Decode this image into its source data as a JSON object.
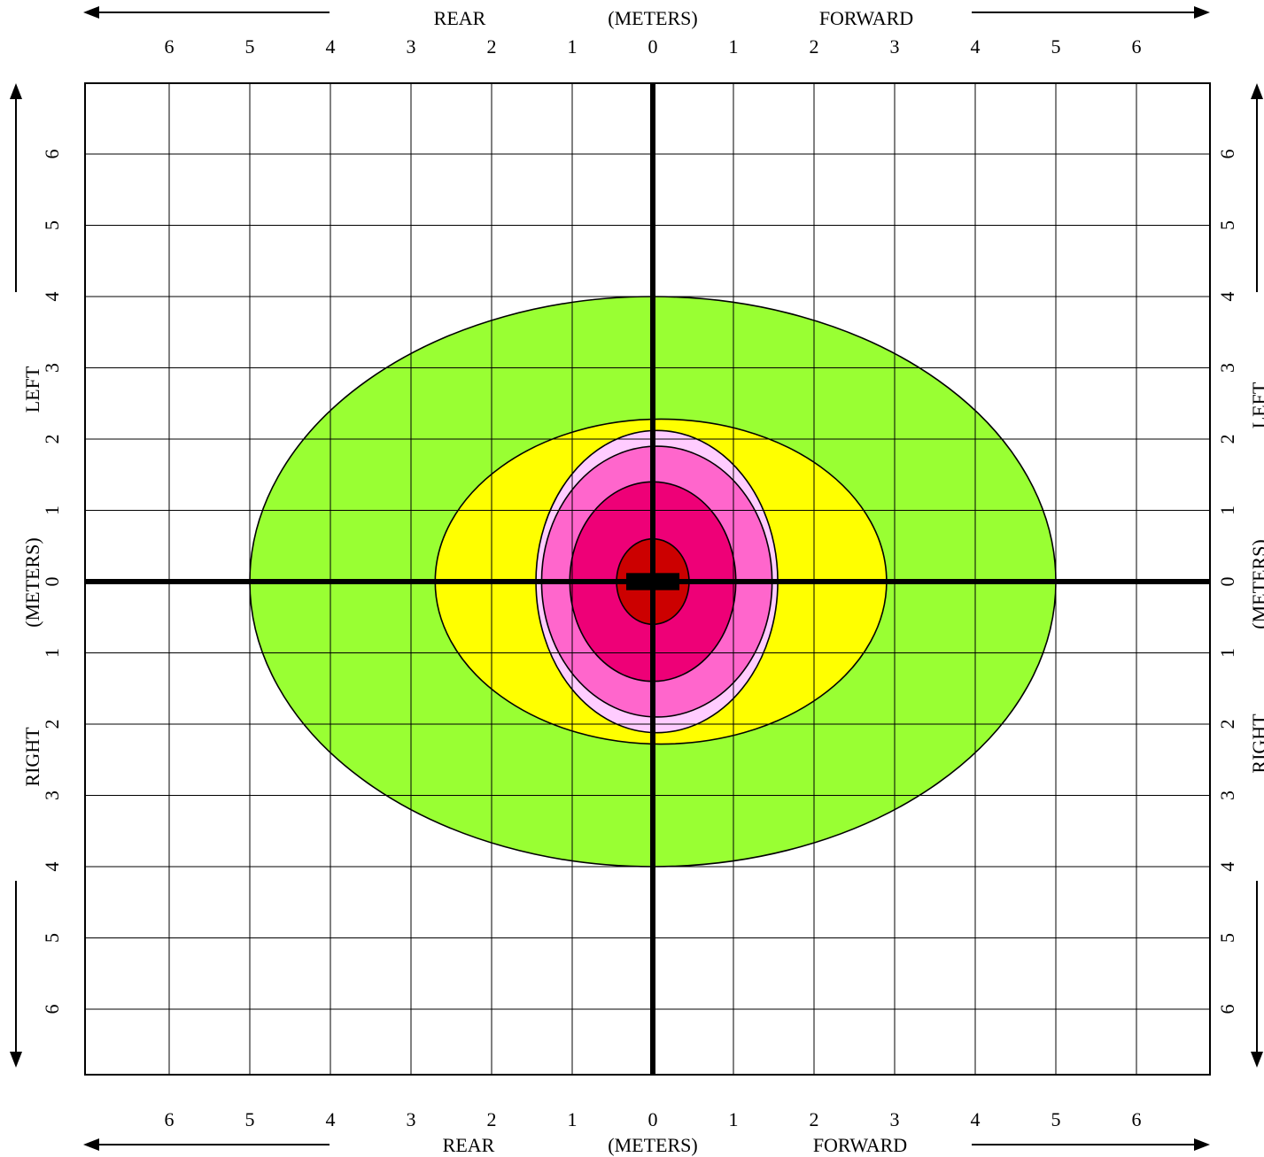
{
  "header": {
    "left_word": "REAR",
    "units": "(METERS)",
    "right_word": "FORWARD"
  },
  "footer": {
    "left_word": "REAR",
    "units": "(METERS)",
    "right_word": "FORWARD"
  },
  "left_side": {
    "top_word": "LEFT",
    "units": "(METERS)",
    "bottom_word": "RIGHT"
  },
  "right_side": {
    "top_word": "LEFT",
    "units": "(METERS)",
    "bottom_word": "RIGHT"
  },
  "chart_data": {
    "type": "heatmap",
    "x_range": [
      -7,
      7
    ],
    "y_range": [
      -7,
      7
    ],
    "x_tick_labels": [
      "6",
      "5",
      "4",
      "3",
      "2",
      "1",
      "0",
      "1",
      "2",
      "3",
      "4",
      "5",
      "6"
    ],
    "x_tick_values": [
      -6,
      -5,
      -4,
      -3,
      -2,
      -1,
      0,
      1,
      2,
      3,
      4,
      5,
      6
    ],
    "y_tick_labels": [
      "6",
      "5",
      "4",
      "3",
      "2",
      "1",
      "0",
      "1",
      "2",
      "3",
      "4",
      "5",
      "6"
    ],
    "y_tick_values": [
      6,
      5,
      4,
      3,
      2,
      1,
      0,
      -1,
      -2,
      -3,
      -4,
      -5,
      -6
    ],
    "grid": true,
    "zones": [
      {
        "color": "#99FF33",
        "cx": 0,
        "cy": 0,
        "rx": 5.0,
        "ry": 4.0
      },
      {
        "color": "#FFFF00",
        "cx": 0.1,
        "cy": 0,
        "rx": 2.8,
        "ry": 2.28
      },
      {
        "color": "#FFCCFF",
        "cx": 0.05,
        "cy": 0,
        "rx": 1.5,
        "ry": 2.12
      },
      {
        "color": "#FF66CC",
        "cx": 0.05,
        "cy": 0,
        "rx": 1.43,
        "ry": 1.9
      },
      {
        "color": "#EE0077",
        "cx": 0,
        "cy": 0,
        "rx": 1.03,
        "ry": 1.4
      },
      {
        "color": "#CC0000",
        "cx": 0,
        "cy": 0,
        "rx": 0.45,
        "ry": 0.6
      }
    ],
    "center_marker": {
      "x": 0,
      "y": 0,
      "width": 0.66,
      "height": 0.24,
      "color": "#000000"
    }
  }
}
